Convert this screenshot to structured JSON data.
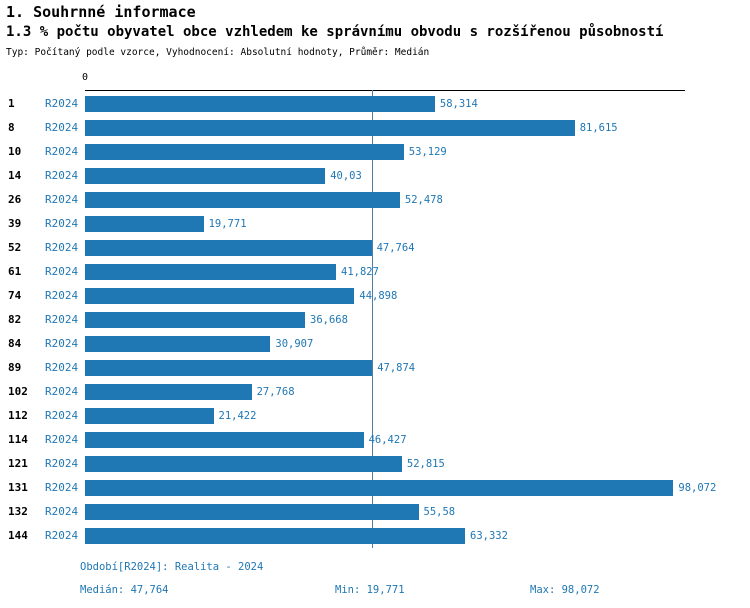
{
  "header": {
    "title": "1. Souhrnné informace",
    "subtitle": "1.3 % počtu obyvatel obce vzhledem ke správnímu obvodu s rozšířenou působností",
    "meta": "Typ: Počítaný podle vzorce, Vyhodnocení: Absolutní hodnoty, Průměr: Medián"
  },
  "chart_data": {
    "type": "bar",
    "orientation": "horizontal",
    "title": "1.3 % počtu obyvatel obce vzhledem ke správnímu obvodu s rozšířenou působností",
    "series_label": "R2024",
    "categories": [
      "1",
      "8",
      "10",
      "14",
      "26",
      "39",
      "52",
      "61",
      "74",
      "82",
      "84",
      "89",
      "102",
      "112",
      "114",
      "121",
      "131",
      "132",
      "144"
    ],
    "values": [
      58.314,
      81.615,
      53.129,
      40.03,
      52.478,
      19.771,
      47.764,
      41.827,
      44.898,
      36.668,
      30.907,
      47.874,
      27.768,
      21.422,
      46.427,
      52.815,
      98.072,
      55.58,
      63.332
    ],
    "value_labels": [
      "58,314",
      "81,615",
      "53,129",
      "40,03",
      "52,478",
      "19,771",
      "47,764",
      "41,827",
      "44,898",
      "36,668",
      "30,907",
      "47,874",
      "27,768",
      "21,422",
      "46,427",
      "52,815",
      "98,072",
      "55,58",
      "63,332"
    ],
    "xlim": [
      0,
      100
    ],
    "x_axis_ticks": [
      "0"
    ],
    "grid": false,
    "legend_position": "none",
    "median": 47.764,
    "median_label": "47,764",
    "bar_color": "#1f77b4",
    "median_line_color": "#4d7ea8"
  },
  "footer": {
    "period": "Období[R2024]: Realita - 2024",
    "median": "Medián: 47,764",
    "min": "Min: 19,771",
    "max": "Max: 98,072"
  }
}
